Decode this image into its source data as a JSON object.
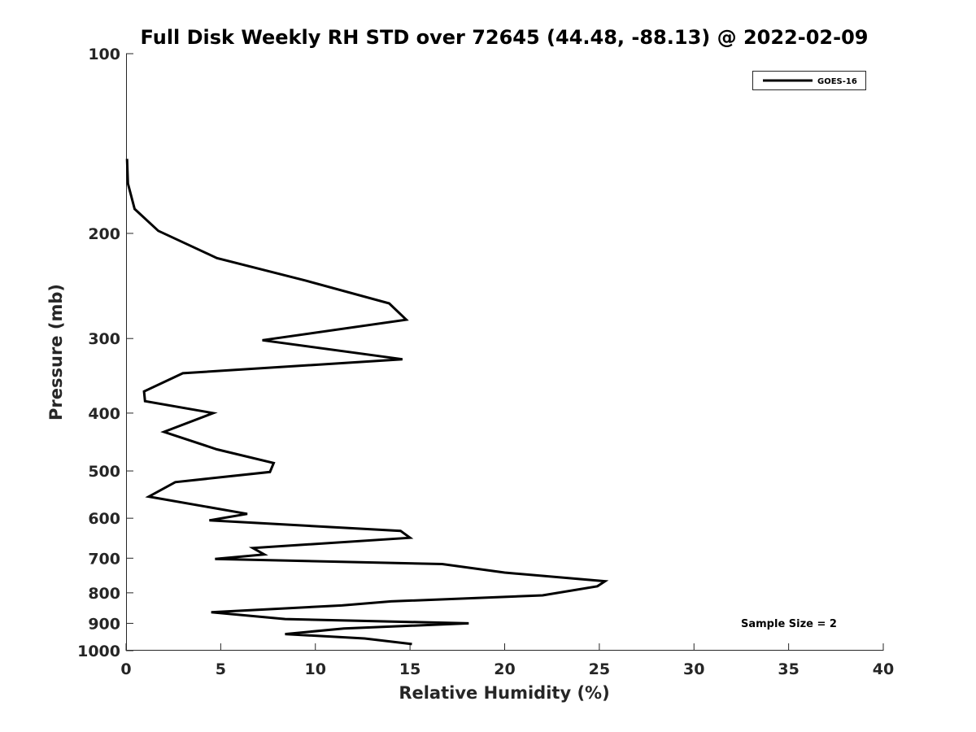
{
  "chart_data": {
    "type": "line",
    "title": "Full Disk Weekly RH STD over 72645 (44.48, -88.13) @ 2022-02-09",
    "xlabel": "Relative Humidity (%)",
    "ylabel": "Pressure (mb)",
    "xlim": [
      0,
      40
    ],
    "ylim": [
      1000,
      100
    ],
    "yscale": "log",
    "x_ticks": [
      "0",
      "5",
      "10",
      "15",
      "20",
      "25",
      "30",
      "35",
      "40"
    ],
    "y_ticks": [
      "100",
      "200",
      "300",
      "400",
      "500",
      "600",
      "700",
      "800",
      "900",
      "1000"
    ],
    "legend": {
      "position": "top-right",
      "entries": [
        "GOES-16"
      ]
    },
    "annotation": "Sample Size = 2",
    "series": [
      {
        "name": "GOES-16",
        "x": [
          0.05,
          0.1,
          0.45,
          1.7,
          4.8,
          9.5,
          13.9,
          14.8,
          7.2,
          14.6,
          3.0,
          0.95,
          1.0,
          4.6,
          2.0,
          4.8,
          7.8,
          7.6,
          2.6,
          1.2,
          6.4,
          4.4,
          14.5,
          15.0,
          6.7,
          7.3,
          4.7,
          16.7,
          20.0,
          25.3,
          24.9,
          22.0,
          14.0,
          11.4,
          4.5,
          8.4,
          18.1,
          11.5,
          8.4,
          12.6,
          15.1
        ],
        "y": [
          150,
          165,
          182,
          198,
          220,
          240,
          262,
          279,
          302,
          325,
          343,
          368,
          382,
          400,
          430,
          460,
          485,
          502,
          522,
          552,
          590,
          605,
          630,
          647,
          673,
          690,
          702,
          716,
          740,
          765,
          780,
          808,
          827,
          840,
          862,
          885,
          900,
          918,
          938,
          954,
          975
        ]
      }
    ]
  }
}
